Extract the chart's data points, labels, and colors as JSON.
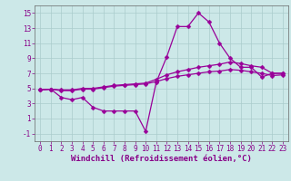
{
  "bg_color": "#cce8e8",
  "grid_color": "#aacccc",
  "line_color": "#990099",
  "markersize": 2.5,
  "linewidth": 0.9,
  "xlabel": "Windchill (Refroidissement éolien,°C)",
  "xlabel_fontsize": 6.5,
  "tick_fontsize": 5.5,
  "xlim": [
    -0.5,
    23.5
  ],
  "ylim": [
    -2.0,
    16.0
  ],
  "yticks": [
    -1,
    1,
    3,
    5,
    7,
    9,
    11,
    13,
    15
  ],
  "xticks": [
    0,
    1,
    2,
    3,
    4,
    5,
    6,
    7,
    8,
    9,
    10,
    11,
    12,
    13,
    14,
    15,
    16,
    17,
    18,
    19,
    20,
    21,
    22,
    23
  ],
  "series": [
    [
      4.8,
      4.9,
      3.8,
      3.5,
      3.8,
      2.5,
      2.0,
      2.0,
      2.0,
      2.0,
      -0.7,
      5.8,
      9.2,
      13.2,
      13.2,
      15.0,
      13.8,
      11.0,
      9.0,
      7.8,
      7.8,
      6.5,
      7.0,
      7.0
    ],
    [
      4.8,
      4.9,
      4.8,
      4.8,
      5.0,
      5.0,
      5.2,
      5.4,
      5.5,
      5.6,
      5.7,
      6.2,
      6.8,
      7.2,
      7.5,
      7.8,
      8.0,
      8.2,
      8.5,
      8.3,
      8.0,
      7.8,
      7.0,
      7.0
    ],
    [
      4.8,
      4.9,
      4.7,
      4.7,
      4.9,
      4.9,
      5.1,
      5.3,
      5.4,
      5.5,
      5.6,
      5.9,
      6.3,
      6.6,
      6.8,
      7.0,
      7.2,
      7.3,
      7.5,
      7.4,
      7.2,
      7.0,
      6.7,
      6.8
    ]
  ]
}
